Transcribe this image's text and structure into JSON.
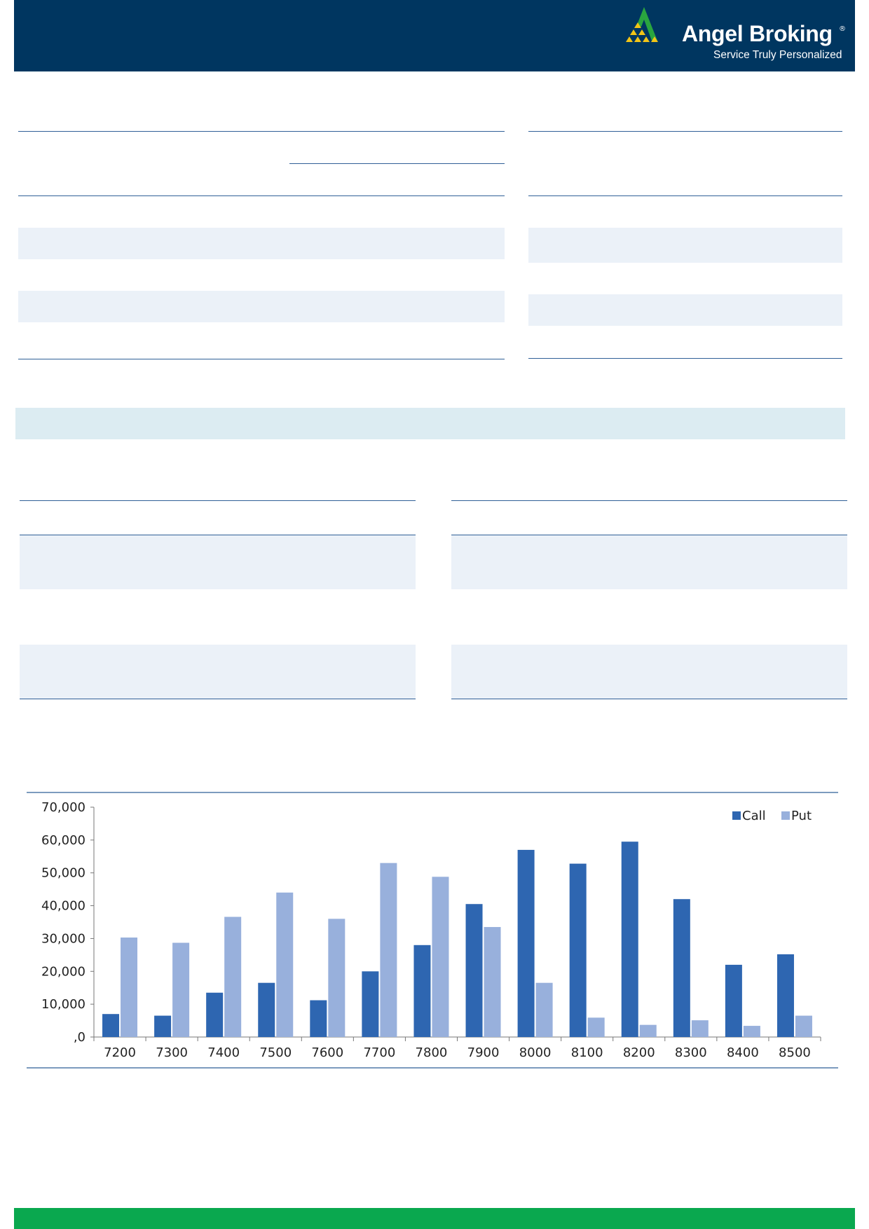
{
  "brand": {
    "name": "Angel Broking",
    "registered_mark": "®",
    "tagline": "Service Truly Personalized",
    "colors": {
      "header_bg": "#003660",
      "logo_green": "#2aa53f",
      "logo_yellow": "#f2c417",
      "footer_green": "#0aa84f"
    }
  },
  "chart_data": {
    "type": "bar",
    "categories": [
      "7200",
      "7300",
      "7400",
      "7500",
      "7600",
      "7700",
      "7800",
      "7900",
      "8000",
      "8100",
      "8200",
      "8300",
      "8400",
      "8500"
    ],
    "series": [
      {
        "name": "Call",
        "color": "#2e66b1",
        "values": [
          7000,
          6500,
          13500,
          16500,
          11200,
          20000,
          28000,
          40500,
          57000,
          52800,
          59500,
          42000,
          22000,
          25200
        ]
      },
      {
        "name": "Put",
        "color": "#98b0dc",
        "values": [
          30300,
          28700,
          36600,
          44000,
          36000,
          53000,
          48800,
          33500,
          16500,
          5900,
          3700,
          5100,
          3400,
          6500
        ]
      }
    ],
    "ylim": [
      0,
      70000
    ],
    "yticks": [
      ",0",
      "10,000",
      "20,000",
      "30,000",
      "40,000",
      "50,000",
      "60,000",
      "70,000"
    ],
    "legend_position": "top-right",
    "grid": false,
    "title": "",
    "xlabel": "",
    "ylabel": ""
  }
}
